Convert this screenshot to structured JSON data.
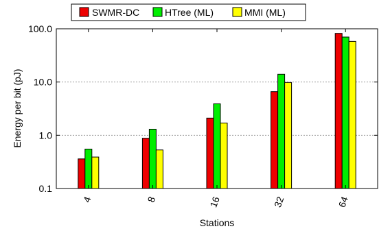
{
  "chart_data": {
    "type": "bar",
    "scale": "log",
    "xlabel": "Stations",
    "ylabel": "Energy per bit (pJ)",
    "categories": [
      "4",
      "8",
      "16",
      "32",
      "64"
    ],
    "y_ticks": [
      {
        "value": 0.1,
        "label": "0.1"
      },
      {
        "value": 1.0,
        "label": "1.0"
      },
      {
        "value": 10.0,
        "label": "10.0"
      },
      {
        "value": 100.0,
        "label": "100.0"
      }
    ],
    "ylim": [
      0.1,
      100
    ],
    "grid": "horizontal-dashed",
    "legend_position": "top",
    "series": [
      {
        "name": "SWMR-DC",
        "color": "#ee0000",
        "values": [
          0.36,
          0.88,
          2.1,
          6.6,
          82
        ]
      },
      {
        "name": "HTree (ML)",
        "color": "#00ee00",
        "values": [
          0.55,
          1.3,
          3.9,
          14,
          70
        ]
      },
      {
        "name": "MMI (ML)",
        "color": "#ffff00",
        "values": [
          0.39,
          0.53,
          1.7,
          9.8,
          58
        ]
      }
    ]
  }
}
